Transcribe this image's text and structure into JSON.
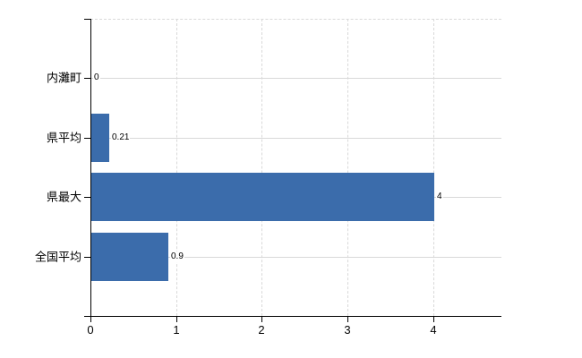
{
  "chart_data": {
    "type": "bar",
    "orientation": "horizontal",
    "title": "",
    "categories": [
      "内灘町",
      "県平均",
      "県最大",
      "全国平均"
    ],
    "values": [
      0,
      0.21,
      4,
      0.9
    ],
    "value_labels": [
      "0",
      "0.21",
      "4",
      "0.9"
    ],
    "x_ticks": [
      0,
      1,
      2,
      3,
      4
    ],
    "x_tick_labels": [
      "0",
      "1",
      "2",
      "3",
      "4"
    ],
    "xlim": [
      0,
      4.8
    ],
    "grid": "on",
    "legend": "none",
    "colors": {
      "bar": "#3b6cab",
      "grid": "#d9d9d9",
      "axis": "#000000",
      "text": "#000000",
      "background": "#ffffff"
    }
  }
}
